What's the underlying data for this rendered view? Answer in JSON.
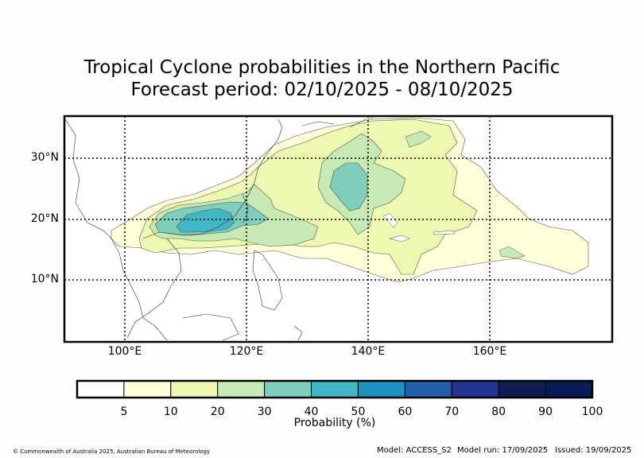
{
  "title": {
    "line1": "Tropical Cyclone probabilities in the Northern Pacific",
    "line2": "Forecast period: 02/10/2025 - 08/10/2025"
  },
  "map": {
    "region": "Northern Pacific",
    "lon_range": [
      90,
      180
    ],
    "lat_range": [
      0,
      37
    ],
    "lon_ticks": [
      "100°E",
      "120°E",
      "140°E",
      "160°E"
    ],
    "lat_ticks": [
      "30°N",
      "20°N",
      "10°N"
    ],
    "peak_area": "South China Sea near 20°N 115°E (40–50%)",
    "secondary_peak": "Western Pacific near 25°N 138°E (30–40%)"
  },
  "colorbar": {
    "title": "Probability (%)",
    "ticks": [
      "5",
      "10",
      "20",
      "30",
      "40",
      "50",
      "60",
      "70",
      "80",
      "90",
      "100"
    ],
    "colors": [
      "#ffffff",
      "#ffffda",
      "#edf8b1",
      "#c7e9b4",
      "#7fcdbb",
      "#41b6c4",
      "#1d91c0",
      "#225ea8",
      "#253494",
      "#0f1e4f",
      "#081d58"
    ]
  },
  "footer": {
    "copyright": "© Commonwealth of Australia 2025, Australian Bureau of Meteorology",
    "model": "Model: ACCESS_S2",
    "model_run": "Model run: 17/09/2025",
    "issued": "Issued: 19/09/2025"
  }
}
